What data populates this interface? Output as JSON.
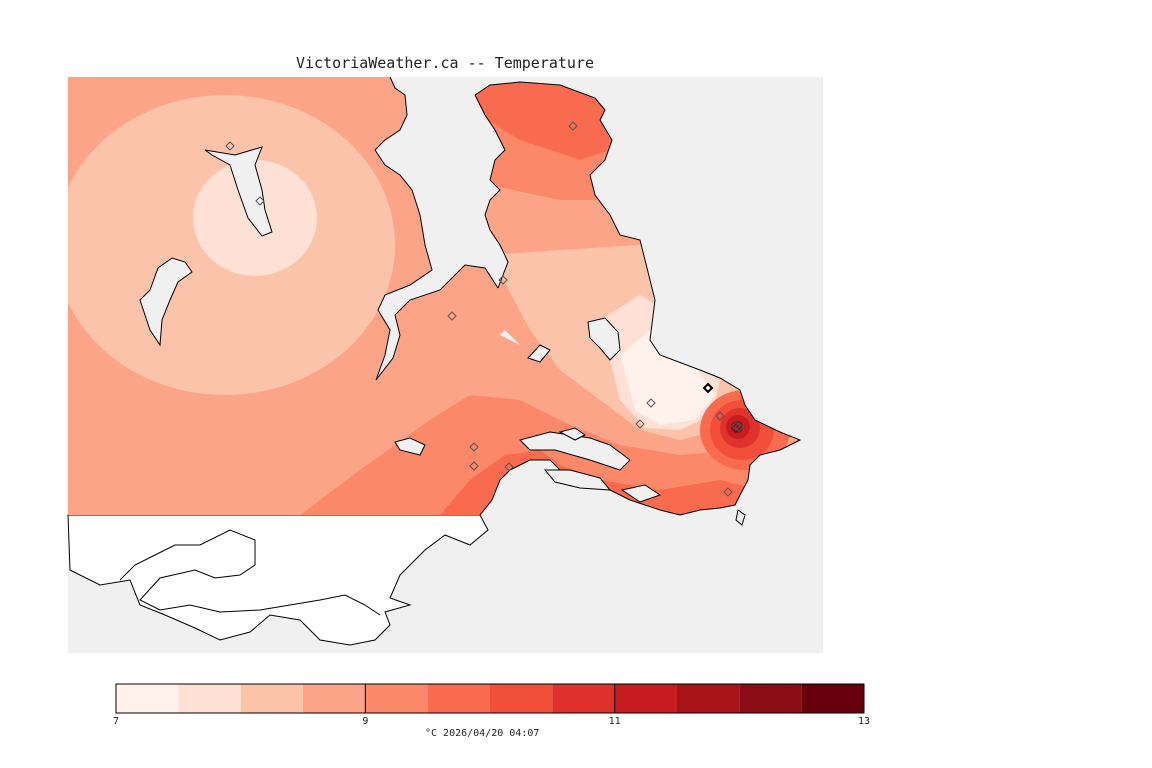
{
  "title": "VictoriaWeather.ca -- Temperature",
  "legend": {
    "min": 7,
    "max": 13,
    "tick_labels": [
      "7",
      "9",
      "11",
      "13"
    ],
    "tick_values": [
      7,
      9,
      11,
      13
    ],
    "units_timestamp": "°C  2026/04/20 04:07",
    "bins": [
      {
        "from": 7.0,
        "to": 7.5,
        "color": "#fff2ec"
      },
      {
        "from": 7.5,
        "to": 8.0,
        "color": "#fee1d4"
      },
      {
        "from": 8.0,
        "to": 8.5,
        "color": "#fcc3ab"
      },
      {
        "from": 8.5,
        "to": 9.0,
        "color": "#fca487"
      },
      {
        "from": 9.0,
        "to": 9.5,
        "color": "#fb8868"
      },
      {
        "from": 9.5,
        "to": 10.0,
        "color": "#f96b4e"
      },
      {
        "from": 10.0,
        "to": 10.5,
        "color": "#f14f3a"
      },
      {
        "from": 10.5,
        "to": 11.0,
        "color": "#e0322c"
      },
      {
        "from": 11.0,
        "to": 11.5,
        "color": "#c71c20"
      },
      {
        "from": 11.5,
        "to": 12.0,
        "color": "#a9141a"
      },
      {
        "from": 12.0,
        "to": 12.5,
        "color": "#8a0c15"
      },
      {
        "from": 12.5,
        "to": 13.0,
        "color": "#67000d"
      }
    ]
  },
  "colors": {
    "water": "#f0f0f0",
    "unshaded_land": "#ffffff",
    "coast": "#000000"
  },
  "station_count": 15
}
